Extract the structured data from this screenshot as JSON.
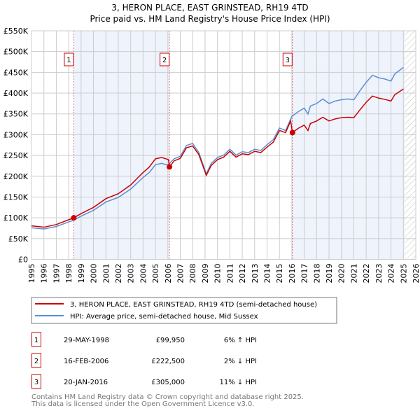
{
  "chart_data": {
    "type": "line",
    "title": "3, HERON PLACE, EAST GRINSTEAD, RH19 4TD",
    "subtitle": "Price paid vs. HM Land Registry's House Price Index (HPI)",
    "xlim": [
      1995,
      2026
    ],
    "ylim": [
      0,
      550000
    ],
    "x_ticks": [
      1995,
      1996,
      1997,
      1998,
      1999,
      2000,
      2001,
      2002,
      2003,
      2004,
      2005,
      2006,
      2007,
      2008,
      2009,
      2010,
      2011,
      2012,
      2013,
      2014,
      2015,
      2016,
      2017,
      2018,
      2019,
      2020,
      2021,
      2022,
      2023,
      2024,
      2025,
      2026
    ],
    "y_ticks": [
      {
        "v": 0,
        "label": "£0"
      },
      {
        "v": 50000,
        "label": "£50K"
      },
      {
        "v": 100000,
        "label": "£100K"
      },
      {
        "v": 150000,
        "label": "£150K"
      },
      {
        "v": 200000,
        "label": "£200K"
      },
      {
        "v": 250000,
        "label": "£250K"
      },
      {
        "v": 300000,
        "label": "£300K"
      },
      {
        "v": 350000,
        "label": "£350K"
      },
      {
        "v": 400000,
        "label": "£400K"
      },
      {
        "v": 450000,
        "label": "£450K"
      },
      {
        "v": 500000,
        "label": "£500K"
      },
      {
        "v": 550000,
        "label": "£550K"
      }
    ],
    "grid": true,
    "shaded_periods": [
      [
        1998.41,
        2006.13
      ],
      [
        2016.05,
        2025.1
      ]
    ],
    "forecast_hatch_from": 2025.1,
    "colors": {
      "property": "#cc0000",
      "hpi": "#5b8fd4",
      "shade": "#eef3fc",
      "marker_box": "#cc0000"
    },
    "series": [
      {
        "name": "3, HERON PLACE, EAST GRINSTEAD, RH19 4TD (semi-detached house)",
        "color": "#cc0000",
        "points": [
          [
            1995,
            80600
          ],
          [
            1996,
            77400
          ],
          [
            1997,
            83700
          ],
          [
            1998,
            95400
          ],
          [
            1998.41,
            99950
          ],
          [
            1999,
            110000
          ],
          [
            2000,
            125000
          ],
          [
            2001,
            146000
          ],
          [
            2002,
            158000
          ],
          [
            2003,
            179000
          ],
          [
            2004,
            209000
          ],
          [
            2004.5,
            222000
          ],
          [
            2005,
            242000
          ],
          [
            2005.5,
            245000
          ],
          [
            2006.05,
            240000
          ],
          [
            2006.13,
            222500
          ],
          [
            2006.5,
            237000
          ],
          [
            2007,
            243000
          ],
          [
            2007.5,
            268500
          ],
          [
            2008,
            273000
          ],
          [
            2008.5,
            252000
          ],
          [
            2009.1,
            202000
          ],
          [
            2009.5,
            226000
          ],
          [
            2010,
            240000
          ],
          [
            2010.5,
            246000
          ],
          [
            2011,
            260000
          ],
          [
            2011.5,
            246000
          ],
          [
            2012,
            254000
          ],
          [
            2012.5,
            252000
          ],
          [
            2013,
            260000
          ],
          [
            2013.5,
            257000
          ],
          [
            2014,
            270000
          ],
          [
            2014.5,
            282000
          ],
          [
            2015,
            310000
          ],
          [
            2015.5,
            305000
          ],
          [
            2015.9,
            333000
          ],
          [
            2016.05,
            305000
          ],
          [
            2016.5,
            315000
          ],
          [
            2017,
            323000
          ],
          [
            2017.3,
            310000
          ],
          [
            2017.5,
            327000
          ],
          [
            2018,
            333000
          ],
          [
            2018.5,
            342000
          ],
          [
            2019,
            333000
          ],
          [
            2019.5,
            338000
          ],
          [
            2020,
            341000
          ],
          [
            2020.5,
            342000
          ],
          [
            2021,
            341000
          ],
          [
            2021.5,
            360000
          ],
          [
            2022,
            378000
          ],
          [
            2022.5,
            393000
          ],
          [
            2023,
            388000
          ],
          [
            2023.5,
            385000
          ],
          [
            2024,
            381000
          ],
          [
            2024.3,
            396000
          ],
          [
            2025,
            410000
          ]
        ]
      },
      {
        "name": "HPI: Average price, semi-detached house, Mid Sussex",
        "color": "#5b8fd4",
        "points": [
          [
            1995,
            76000
          ],
          [
            1996,
            73000
          ],
          [
            1997,
            79000
          ],
          [
            1998,
            90000
          ],
          [
            1998.41,
            94500
          ],
          [
            1999,
            104000
          ],
          [
            2000,
            118000
          ],
          [
            2001,
            138000
          ],
          [
            2002,
            149000
          ],
          [
            2003,
            169000
          ],
          [
            2004,
            197000
          ],
          [
            2004.5,
            209000
          ],
          [
            2005,
            228000
          ],
          [
            2005.5,
            231000
          ],
          [
            2006,
            227000
          ],
          [
            2006.5,
            242000
          ],
          [
            2007,
            248000
          ],
          [
            2007.5,
            274000
          ],
          [
            2008,
            279000
          ],
          [
            2008.5,
            257000
          ],
          [
            2009.1,
            206000
          ],
          [
            2009.5,
            231000
          ],
          [
            2010,
            245000
          ],
          [
            2010.5,
            251000
          ],
          [
            2011,
            265000
          ],
          [
            2011.5,
            251000
          ],
          [
            2012,
            259000
          ],
          [
            2012.5,
            257000
          ],
          [
            2013,
            265000
          ],
          [
            2013.5,
            262000
          ],
          [
            2014,
            276000
          ],
          [
            2014.5,
            288000
          ],
          [
            2015,
            316000
          ],
          [
            2015.5,
            310000
          ],
          [
            2016,
            344000
          ],
          [
            2016.5,
            355000
          ],
          [
            2017,
            364000
          ],
          [
            2017.3,
            350000
          ],
          [
            2017.5,
            369000
          ],
          [
            2018,
            375000
          ],
          [
            2018.5,
            386000
          ],
          [
            2019,
            375000
          ],
          [
            2019.5,
            381000
          ],
          [
            2020,
            384000
          ],
          [
            2020.5,
            386000
          ],
          [
            2021,
            384000
          ],
          [
            2021.5,
            406000
          ],
          [
            2022,
            426000
          ],
          [
            2022.5,
            443000
          ],
          [
            2023,
            437000
          ],
          [
            2023.5,
            434000
          ],
          [
            2024,
            429000
          ],
          [
            2024.3,
            446000
          ],
          [
            2025,
            462000
          ]
        ]
      }
    ],
    "sales": [
      {
        "id": "1",
        "t": 1998.41,
        "price": 99950,
        "date": "29-MAY-1998",
        "price_label": "£99,950",
        "hpi_diff": "6% ↑ HPI"
      },
      {
        "id": "2",
        "t": 2006.13,
        "price": 222500,
        "date": "16-FEB-2006",
        "price_label": "£222,500",
        "hpi_diff": "2% ↓ HPI"
      },
      {
        "id": "3",
        "t": 2016.05,
        "price": 305000,
        "date": "20-JAN-2016",
        "price_label": "£305,000",
        "hpi_diff": "11% ↓ HPI"
      }
    ],
    "legend": {
      "placement": "below",
      "entries": [
        "3, HERON PLACE, EAST GRINSTEAD, RH19 4TD (semi-detached house)",
        "HPI: Average price, semi-detached house, Mid Sussex"
      ]
    }
  },
  "footer": {
    "line1": "Contains HM Land Registry data © Crown copyright and database right 2025.",
    "line2": "This data is licensed under the Open Government Licence v3.0."
  }
}
